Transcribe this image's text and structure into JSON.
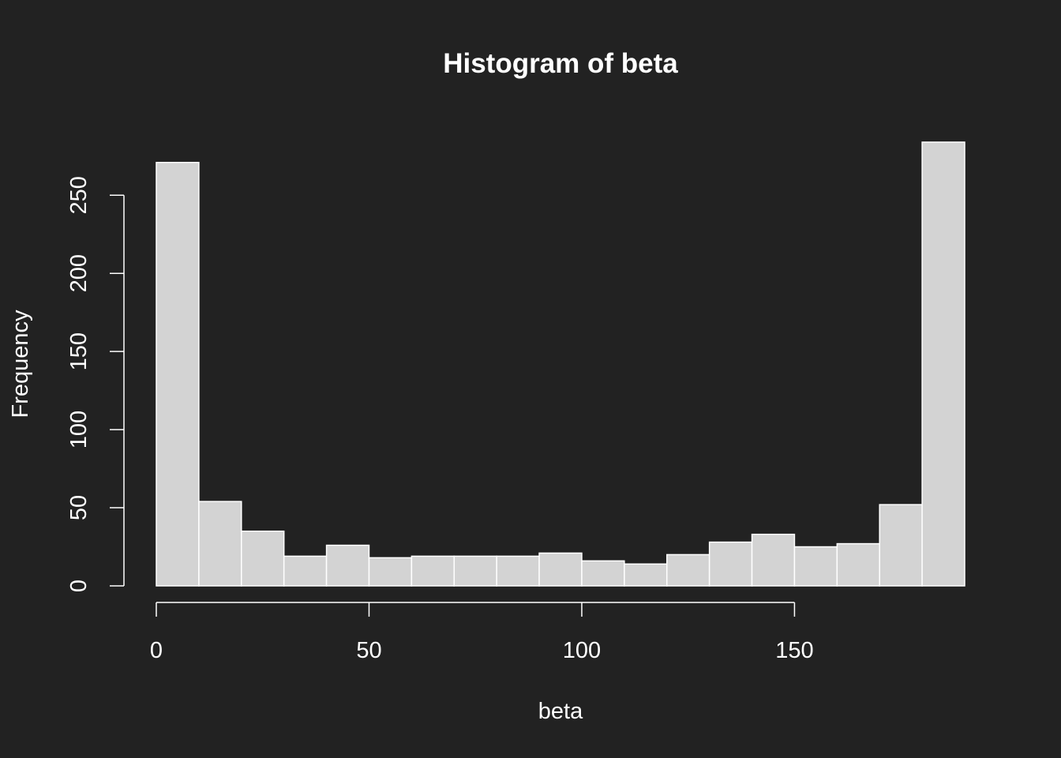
{
  "chart_data": {
    "type": "bar",
    "title": "Histogram of beta",
    "xlabel": "beta",
    "ylabel": "Frequency",
    "bin_edges": [
      0,
      10,
      20,
      30,
      40,
      50,
      60,
      70,
      80,
      90,
      100,
      110,
      120,
      130,
      140,
      150,
      160,
      170,
      180,
      190
    ],
    "values": [
      271,
      54,
      35,
      19,
      26,
      18,
      19,
      19,
      19,
      21,
      16,
      14,
      20,
      28,
      33,
      25,
      27,
      52,
      284
    ],
    "x_ticks": [
      0,
      50,
      100,
      150
    ],
    "y_ticks": [
      0,
      50,
      100,
      150,
      200,
      250
    ],
    "xlim": [
      0,
      190
    ],
    "ylim": [
      0,
      284
    ],
    "grid": false,
    "legend": "none"
  },
  "colors": {
    "background": "#222222",
    "bar_fill": "#d3d3d3",
    "bar_border": "#ffffff",
    "text": "#ffffff",
    "axis": "#ffffff"
  }
}
